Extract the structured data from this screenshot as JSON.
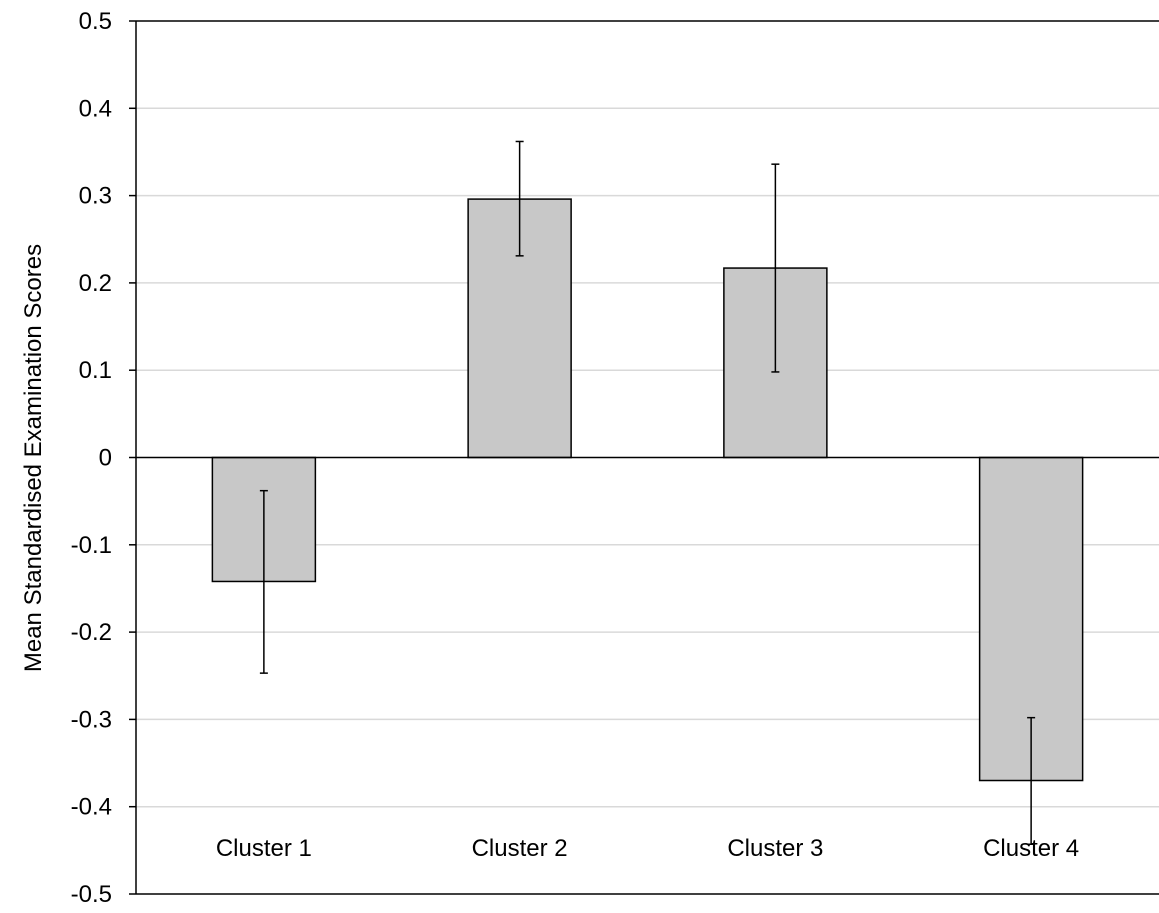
{
  "chart_data": {
    "type": "bar",
    "title": "",
    "xlabel": "",
    "ylabel": "Mean Standardised Examination Scores",
    "categories": [
      "Cluster 1",
      "Cluster 2",
      "Cluster 3",
      "Cluster 4"
    ],
    "values": [
      -0.142,
      0.296,
      0.217,
      -0.37
    ],
    "error_low": [
      -0.247,
      0.231,
      0.098,
      -0.443
    ],
    "error_high": [
      -0.038,
      0.362,
      0.336,
      -0.298
    ],
    "ylim": [
      -0.5,
      0.5
    ],
    "yticks": [
      0.5,
      0.4,
      0.3,
      0.2,
      0.1,
      0,
      -0.1,
      -0.2,
      -0.3,
      -0.4,
      -0.5
    ],
    "ytick_labels": [
      "0.5",
      "0.4",
      "0.3",
      "0.2",
      "0.1",
      "0",
      "-0.1",
      "-0.2",
      "-0.3",
      "-0.4",
      "-0.5"
    ],
    "grid": true,
    "bar_color": "#c8c8c8",
    "bar_edge_color": "#000000",
    "grid_color": "#d9d9d9"
  }
}
